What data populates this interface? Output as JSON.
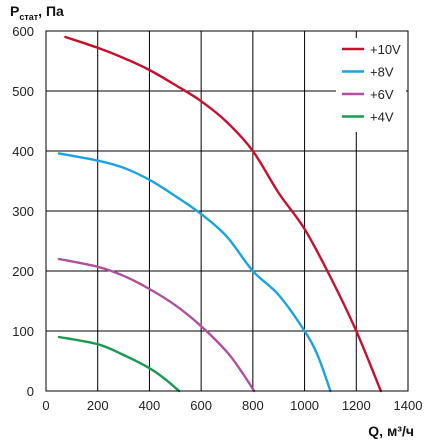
{
  "chart_data": {
    "type": "line",
    "title": "",
    "ylabel_main": "P",
    "ylabel_sub": "стат",
    "ylabel_unit": ", Па",
    "xlabel": "Q, м³/ч",
    "xlim": [
      0,
      1400
    ],
    "ylim": [
      0,
      600
    ],
    "x_ticks": [
      0,
      200,
      400,
      600,
      800,
      1000,
      1200,
      1400
    ],
    "y_ticks": [
      0,
      100,
      200,
      300,
      400,
      500,
      600
    ],
    "grid": true,
    "legend_position": "top-right",
    "series": [
      {
        "name": "+10V",
        "color": "#c8102e",
        "points": [
          [
            75,
            590
          ],
          [
            200,
            572
          ],
          [
            300,
            555
          ],
          [
            400,
            535
          ],
          [
            500,
            510
          ],
          [
            600,
            483
          ],
          [
            700,
            448
          ],
          [
            800,
            400
          ],
          [
            900,
            330
          ],
          [
            1000,
            270
          ],
          [
            1100,
            190
          ],
          [
            1200,
            100
          ],
          [
            1295,
            0
          ]
        ]
      },
      {
        "name": "+8V",
        "color": "#1aa3e0",
        "points": [
          [
            50,
            396
          ],
          [
            200,
            384
          ],
          [
            300,
            372
          ],
          [
            400,
            352
          ],
          [
            500,
            325
          ],
          [
            600,
            295
          ],
          [
            700,
            257
          ],
          [
            800,
            200
          ],
          [
            900,
            160
          ],
          [
            1000,
            100
          ],
          [
            1050,
            60
          ],
          [
            1100,
            0
          ]
        ]
      },
      {
        "name": "+6V",
        "color": "#b0509c",
        "points": [
          [
            50,
            220
          ],
          [
            200,
            207
          ],
          [
            300,
            192
          ],
          [
            400,
            170
          ],
          [
            500,
            143
          ],
          [
            600,
            108
          ],
          [
            700,
            65
          ],
          [
            760,
            30
          ],
          [
            805,
            0
          ]
        ]
      },
      {
        "name": "+4V",
        "color": "#1a9a50",
        "points": [
          [
            50,
            90
          ],
          [
            200,
            78
          ],
          [
            300,
            60
          ],
          [
            400,
            38
          ],
          [
            460,
            20
          ],
          [
            515,
            0
          ]
        ]
      }
    ]
  }
}
